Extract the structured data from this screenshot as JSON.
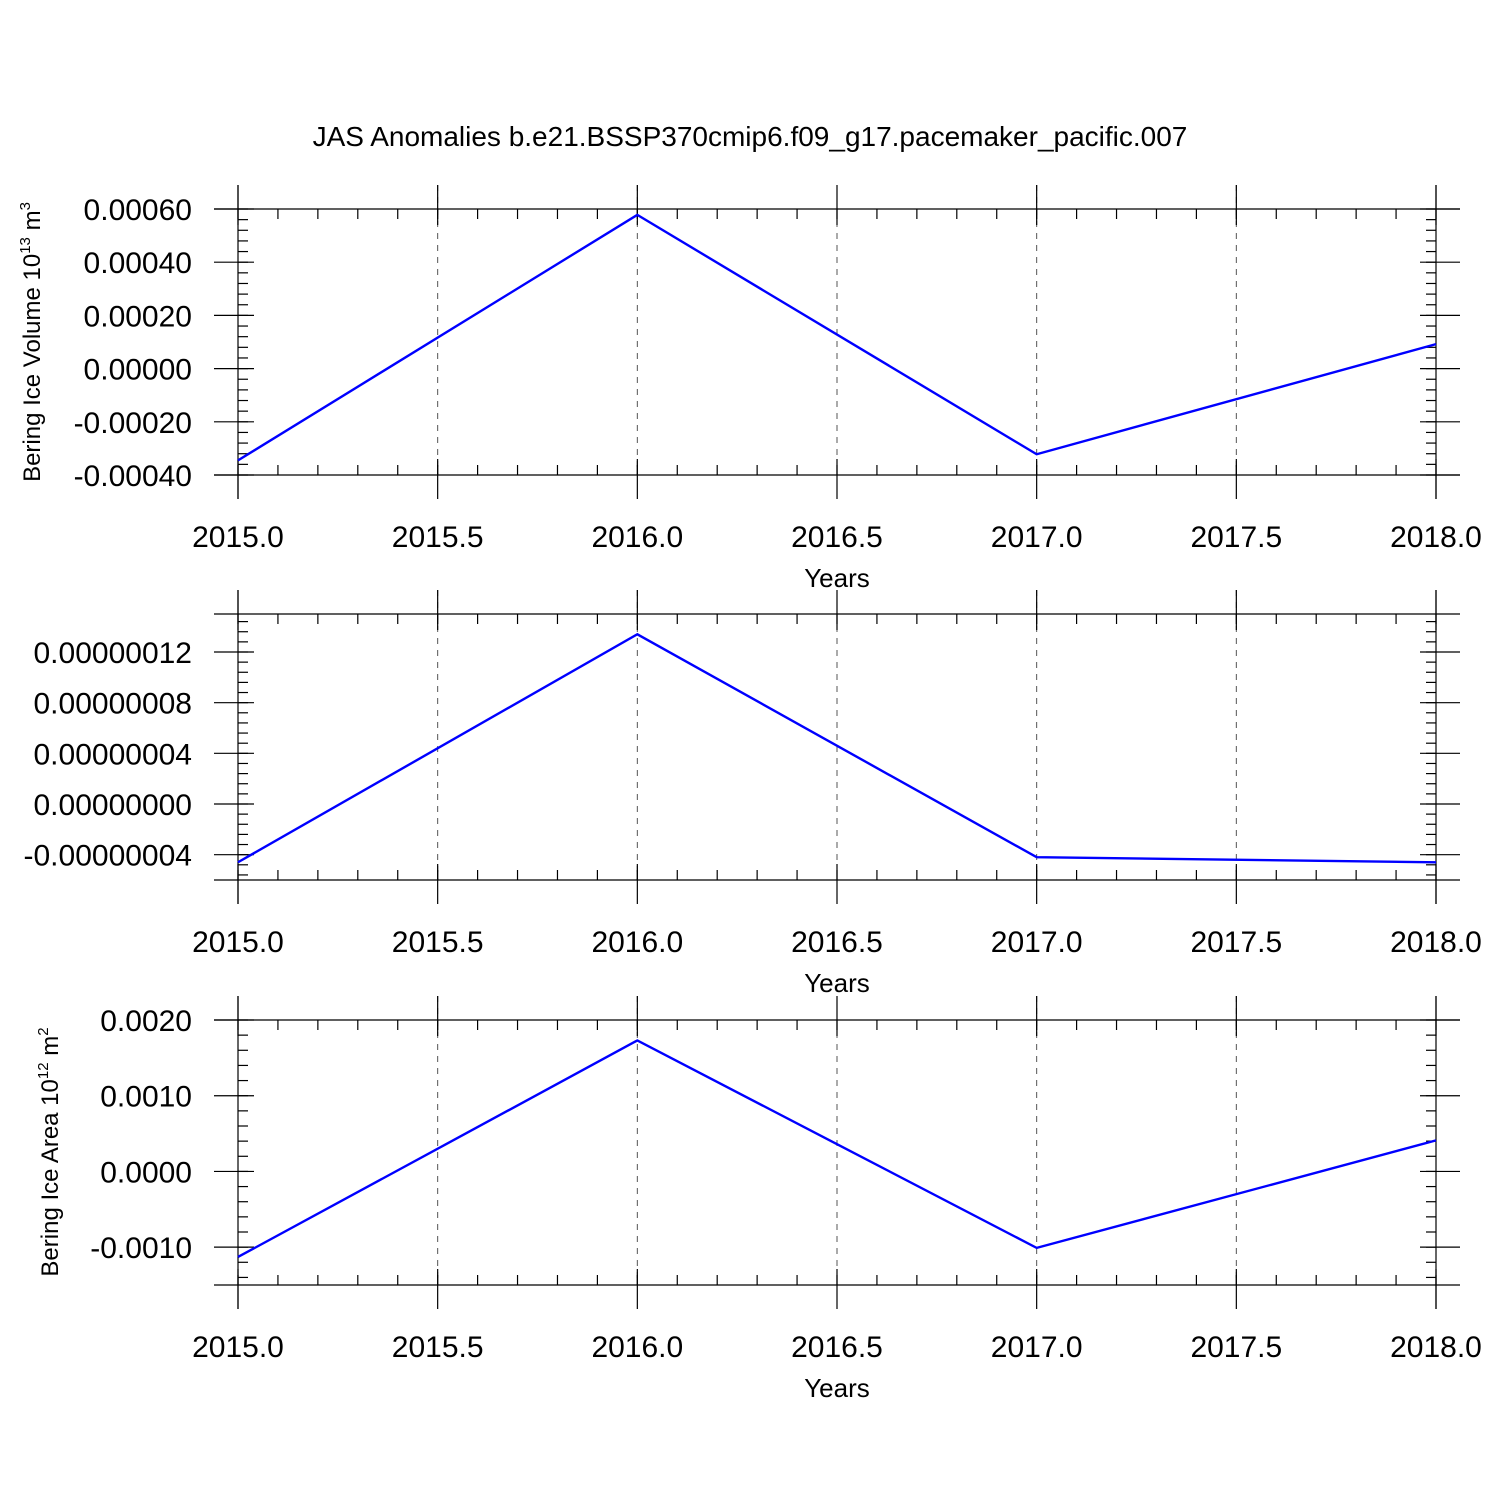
{
  "figure_title": "JAS Anomalies b.e21.BSSP370cmip6.f09_g17.pacemaker_pacific.007",
  "colors": {
    "line": "#0000ff",
    "axis": "#000000",
    "grid": "#555555"
  },
  "chart_data": [
    {
      "type": "line",
      "title": "",
      "xlabel": "Years",
      "ylabel": {
        "main": "Bering Ice Volume 10",
        "exp": "13",
        "unit": " m",
        "unit_exp": "3"
      },
      "x": [
        2015.0,
        2016.0,
        2017.0,
        2018.0
      ],
      "series": [
        {
          "values": [
            -0.000345,
            0.000578,
            -0.000322,
            9.2e-05
          ]
        }
      ],
      "xlim": [
        2015.0,
        2018.0
      ],
      "ylim": [
        -0.0004,
        0.0006
      ],
      "xticks": [
        2015.0,
        2015.5,
        2016.0,
        2016.5,
        2017.0,
        2017.5,
        2018.0
      ],
      "xtick_labels": [
        "2015.0",
        "2015.5",
        "2016.0",
        "2016.5",
        "2017.0",
        "2017.5",
        "2018.0"
      ],
      "yticks": [
        -0.0004,
        -0.0002,
        0.0,
        0.0002,
        0.0004,
        0.0006
      ],
      "ytick_labels": [
        "-0.00040",
        "-0.00020",
        "0.00000",
        "0.00020",
        "0.00040",
        "0.00060"
      ],
      "grid": "vertical-dashed"
    },
    {
      "type": "line",
      "title": "",
      "xlabel": "Years",
      "ylabel": {
        "main": "",
        "exp": "",
        "unit": "",
        "unit_exp": ""
      },
      "x": [
        2015.0,
        2016.0,
        2017.0,
        2018.0
      ],
      "series": [
        {
          "values": [
            -4.6e-08,
            1.34e-07,
            -4.2e-08,
            -4.6e-08
          ]
        }
      ],
      "xlim": [
        2015.0,
        2018.0
      ],
      "ylim": [
        -6e-08,
        1.5e-07
      ],
      "xticks": [
        2015.0,
        2015.5,
        2016.0,
        2016.5,
        2017.0,
        2017.5,
        2018.0
      ],
      "xtick_labels": [
        "2015.0",
        "2015.5",
        "2016.0",
        "2016.5",
        "2017.0",
        "2017.5",
        "2018.0"
      ],
      "yticks": [
        -4e-08,
        0.0,
        4e-08,
        8e-08,
        1.2e-07
      ],
      "ytick_labels": [
        "-0.00000004",
        "0.00000000",
        "0.00000004",
        "0.00000008",
        "0.00000012"
      ],
      "grid": "vertical-dashed"
    },
    {
      "type": "line",
      "title": "",
      "xlabel": "Years",
      "ylabel": {
        "main": "Bering Ice Area 10",
        "exp": "12",
        "unit": " m",
        "unit_exp": "2"
      },
      "x": [
        2015.0,
        2016.0,
        2017.0,
        2018.0
      ],
      "series": [
        {
          "values": [
            -0.00113,
            0.00173,
            -0.00101,
            0.00041
          ]
        }
      ],
      "xlim": [
        2015.0,
        2018.0
      ],
      "ylim": [
        -0.0015,
        0.002
      ],
      "xticks": [
        2015.0,
        2015.5,
        2016.0,
        2016.5,
        2017.0,
        2017.5,
        2018.0
      ],
      "xtick_labels": [
        "2015.0",
        "2015.5",
        "2016.0",
        "2016.5",
        "2017.0",
        "2017.5",
        "2018.0"
      ],
      "yticks": [
        -0.001,
        0.0,
        0.001,
        0.002
      ],
      "ytick_labels": [
        "-0.0010",
        "0.0000",
        "0.0010",
        "0.0020"
      ],
      "grid": "vertical-dashed"
    }
  ]
}
